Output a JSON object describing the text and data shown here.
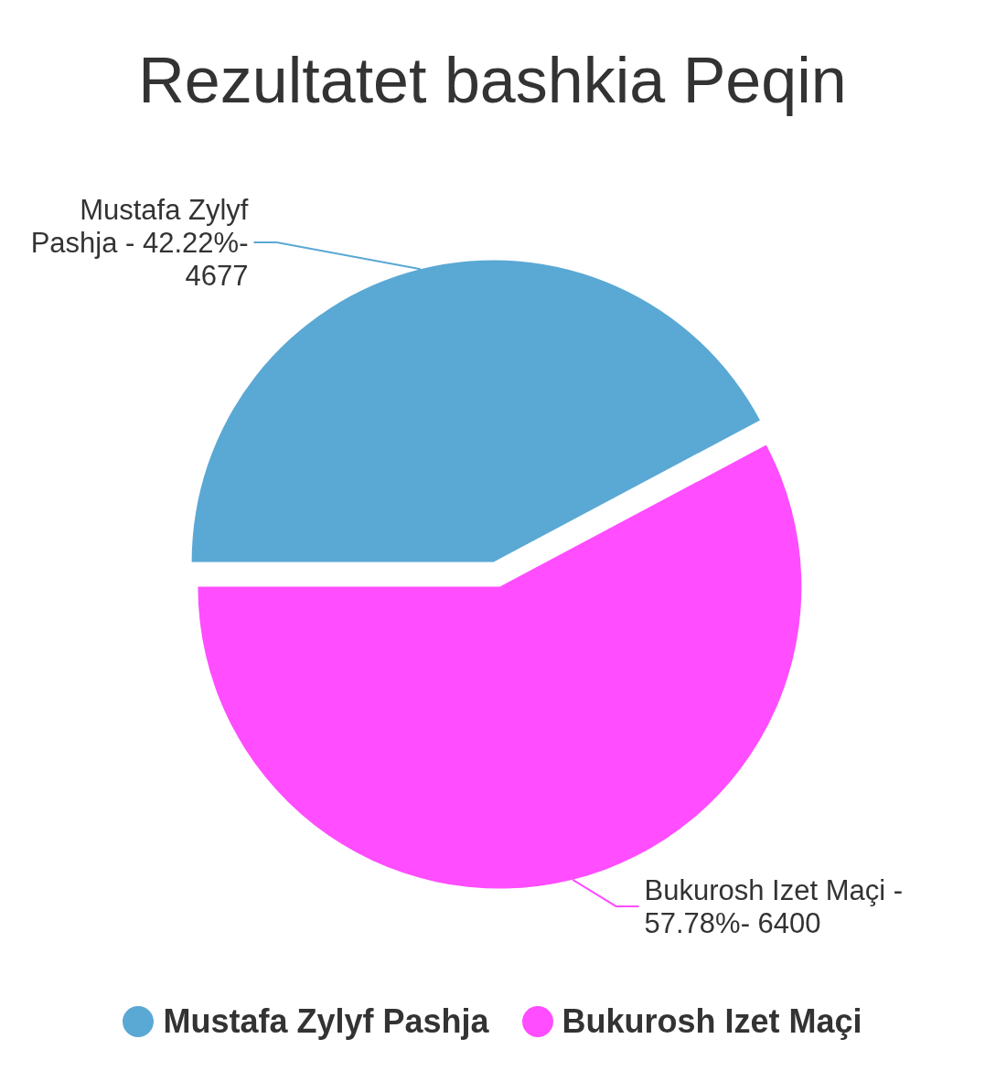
{
  "chart_data": {
    "type": "pie",
    "title": "Rezultatet bashkia Peqin",
    "categories": [
      "Mustafa Zylyf Pashja",
      "Bukurosh Izet Maçi"
    ],
    "values": [
      42.22,
      57.78
    ],
    "colors": [
      "#5aa8d4",
      "#ff4dff"
    ],
    "annotations": [
      "Mustafa Zylyf Pashja - 42.22%- 4677",
      "Bukurosh Izet Maçi - 57.78%- 6400"
    ],
    "legend": "bottom"
  }
}
